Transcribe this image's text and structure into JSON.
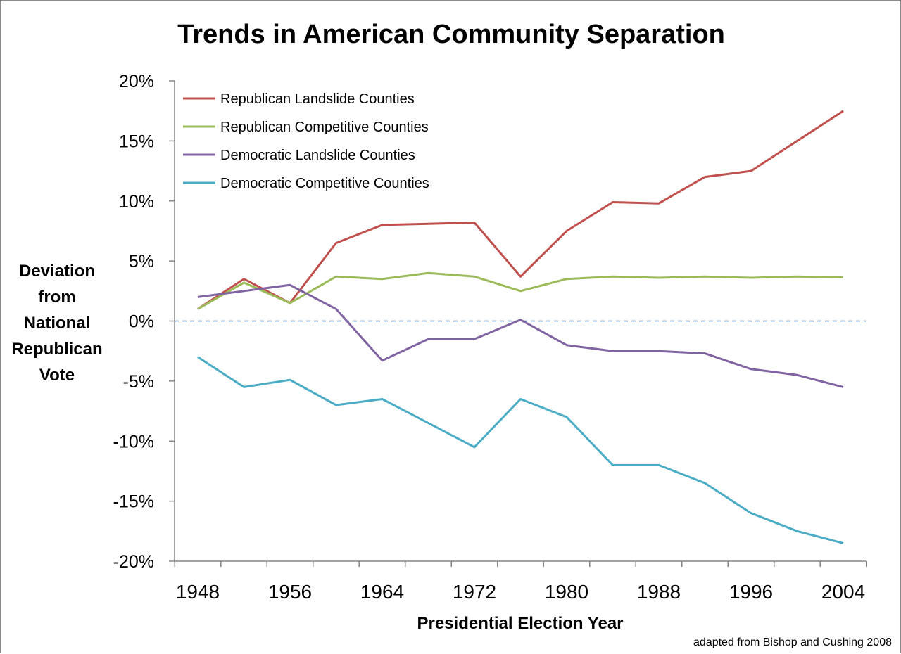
{
  "chart_data": {
    "type": "line",
    "title": "Trends in American Community Separation",
    "xlabel": "Presidential Election Year",
    "ylabel": "Deviation from National Republican Vote",
    "ylabel_lines": [
      "Deviation",
      "from",
      "National",
      "Republican",
      "Vote"
    ],
    "source": "adapted from Bishop and Cushing 2008",
    "x": [
      1948,
      1952,
      1956,
      1960,
      1964,
      1968,
      1972,
      1976,
      1980,
      1984,
      1988,
      1992,
      1996,
      2000,
      2004
    ],
    "x_tick_labels": [
      "1948",
      "1956",
      "1964",
      "1972",
      "1980",
      "1988",
      "1996",
      "2004"
    ],
    "x_tick_values": [
      1948,
      1956,
      1964,
      1972,
      1980,
      1988,
      1996,
      2004
    ],
    "ylim": [
      -20,
      20
    ],
    "y_ticks": [
      20,
      15,
      10,
      5,
      0,
      -5,
      -10,
      -15,
      -20
    ],
    "y_tick_labels": [
      "20%",
      "15%",
      "10%",
      "5%",
      "0%",
      "-5%",
      "-10%",
      "-15%",
      "-20%"
    ],
    "reference_line": 0,
    "grid": false,
    "legend_position": "top-left",
    "series": [
      {
        "name": "Republican Landslide Counties",
        "color": "#c0504d",
        "values": [
          1.0,
          3.5,
          1.5,
          6.5,
          8.0,
          8.1,
          8.2,
          3.7,
          7.5,
          9.9,
          9.8,
          12.0,
          12.5,
          15.0,
          17.5
        ]
      },
      {
        "name": "Republican Competitive Counties",
        "color": "#9bbb59",
        "values": [
          1.0,
          3.2,
          1.5,
          3.7,
          3.5,
          4.0,
          3.7,
          2.5,
          3.5,
          3.7,
          3.6,
          3.7,
          3.6,
          3.7,
          3.65
        ]
      },
      {
        "name": "Democratic Landslide Counties",
        "color": "#8064a2",
        "values": [
          2.0,
          2.5,
          3.0,
          1.0,
          -3.3,
          -1.5,
          -1.5,
          0.1,
          -2.0,
          -2.5,
          -2.5,
          -2.7,
          -4.0,
          -4.5,
          -5.5
        ]
      },
      {
        "name": "Democratic Competitive Counties",
        "color": "#4bacc6",
        "values": [
          -3.0,
          -5.5,
          -4.9,
          -7.0,
          -6.5,
          -8.5,
          -10.5,
          -6.5,
          -8.0,
          -12.0,
          -12.0,
          -13.5,
          -16.0,
          -17.5,
          -18.5
        ]
      }
    ],
    "reference_line_color": "#4f81bd",
    "axis_color": "#868686"
  }
}
